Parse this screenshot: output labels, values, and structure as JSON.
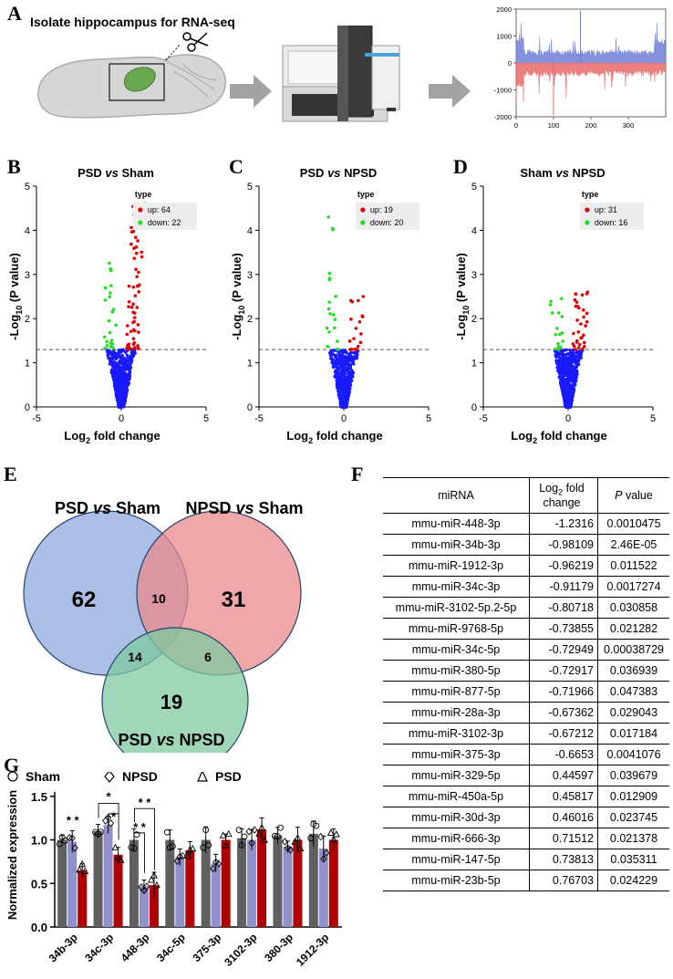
{
  "panels": {
    "a": "A",
    "b": "B",
    "c": "C",
    "d": "D",
    "e": "E",
    "f": "F",
    "g": "G"
  },
  "panel_a": {
    "title": "Isolate hippocampus for RNA-seq"
  },
  "chart_data": [
    {
      "id": "A-trace",
      "type": "area",
      "title": "",
      "x_ticks": [
        "0",
        "100",
        "200",
        "300"
      ],
      "y_ticks": [
        "2000",
        "1000",
        "0",
        "-1000",
        "-2000"
      ],
      "xlim": [
        0,
        400
      ],
      "ylim": [
        -2000,
        2000
      ],
      "series": [
        {
          "name": "up",
          "color": "#6f7fd6"
        },
        {
          "name": "down",
          "color": "#e86a6a"
        }
      ]
    },
    {
      "id": "B",
      "type": "scatter",
      "title_parts": [
        "PSD ",
        "vs",
        " Sham"
      ],
      "xlabel_base": "Log",
      "xlabel_sub": "2",
      "xlabel_rest": " fold change",
      "ylabel_base": "-Log",
      "ylabel_sub": "10",
      "ylabel_rest": " (P value)",
      "x_ticks": [
        "-5",
        "0",
        "5"
      ],
      "y_ticks": [
        "0",
        "1",
        "2",
        "3",
        "4",
        "5"
      ],
      "xlim": [
        -5,
        5
      ],
      "ylim": [
        0,
        5
      ],
      "threshold": 1.3,
      "legend": {
        "title": "type",
        "items": [
          {
            "label": "up: 64",
            "color": "#e00000"
          },
          {
            "label": "down: 22",
            "color": "#22dd22"
          }
        ]
      },
      "up": {
        "count": 64,
        "max_y": 4.6
      },
      "down": {
        "count": 22,
        "max_y": 3.3
      }
    },
    {
      "id": "C",
      "type": "scatter",
      "title_parts": [
        "PSD ",
        "vs",
        " NPSD"
      ],
      "xlabel_base": "Log",
      "xlabel_sub": "2",
      "xlabel_rest": " fold change",
      "ylabel_base": "-Log",
      "ylabel_sub": "10",
      "ylabel_rest": " (P value)",
      "x_ticks": [
        "-5",
        "0",
        "5"
      ],
      "y_ticks": [
        "0",
        "1",
        "2",
        "3",
        "4",
        "5"
      ],
      "xlim": [
        -5,
        5
      ],
      "ylim": [
        0,
        5
      ],
      "threshold": 1.3,
      "legend": {
        "title": "type",
        "items": [
          {
            "label": "up: 19",
            "color": "#e00000"
          },
          {
            "label": "down: 20",
            "color": "#22dd22"
          }
        ]
      },
      "up": {
        "count": 19,
        "max_y": 2.5
      },
      "down": {
        "count": 20,
        "max_y": 4.6
      }
    },
    {
      "id": "D",
      "type": "scatter",
      "title_parts": [
        "Sham ",
        "vs",
        " NPSD"
      ],
      "xlabel_base": "Log",
      "xlabel_sub": "2",
      "xlabel_rest": " fold change",
      "ylabel_base": "-Log",
      "ylabel_sub": "10",
      "ylabel_rest": " (P value)",
      "x_ticks": [
        "-5",
        "0",
        "5"
      ],
      "y_ticks": [
        "0",
        "1",
        "2",
        "3",
        "4",
        "5"
      ],
      "xlim": [
        -5,
        5
      ],
      "ylim": [
        0,
        5
      ],
      "threshold": 1.3,
      "legend": {
        "title": "type",
        "items": [
          {
            "label": "up: 31",
            "color": "#e00000"
          },
          {
            "label": "down: 16",
            "color": "#22dd22"
          }
        ]
      },
      "up": {
        "count": 31,
        "max_y": 2.6
      },
      "down": {
        "count": 16,
        "max_y": 2.5
      }
    },
    {
      "id": "G",
      "type": "bar",
      "ylabel": "Normalized expression",
      "categories": [
        "34b-3p",
        "34c-3p",
        "448-3p",
        "34c-5p",
        "375-3p",
        "3102-3p",
        "380-3p",
        "1912-3p"
      ],
      "y_ticks": [
        "0.0",
        "0.5",
        "1.0",
        "1.5"
      ],
      "ylim": [
        0,
        1.55
      ],
      "legend": [
        {
          "label": "Sham",
          "marker": "circle"
        },
        {
          "label": "NPSD",
          "marker": "diamond"
        },
        {
          "label": "PSD",
          "marker": "triangle"
        }
      ],
      "series": [
        {
          "name": "Sham",
          "color": "#606060",
          "values": [
            1.0,
            1.1,
            1.0,
            1.0,
            1.0,
            1.02,
            1.05,
            1.07
          ]
        },
        {
          "name": "NPSD",
          "color": "#9090cc",
          "values": [
            0.98,
            1.17,
            0.47,
            0.8,
            0.73,
            1.0,
            0.92,
            0.9
          ]
        },
        {
          "name": "PSD",
          "color": "#b00000",
          "values": [
            0.65,
            0.83,
            0.48,
            0.88,
            1.0,
            1.12,
            1.0,
            1.0
          ]
        }
      ],
      "significance": [
        "* *",
        "*",
        "*",
        "* *",
        "* *"
      ]
    }
  ],
  "venn": {
    "labels": [
      {
        "pre": "PSD ",
        "it": "vs",
        "post": " Sham"
      },
      {
        "pre": "NPSD ",
        "it": "vs",
        "post": " Sham"
      },
      {
        "pre": "PSD ",
        "it": "vs",
        "post": " NPSD"
      }
    ],
    "counts": {
      "a_only": "62",
      "b_only": "31",
      "c_only": "19",
      "ab": "10",
      "ac": "14",
      "bc": "6"
    },
    "colors": {
      "a": "#8fa8dc",
      "b": "#e98a8a",
      "c": "#7fc9a0"
    }
  },
  "table": {
    "headers": {
      "mirna": "miRNA",
      "log_base": "Log",
      "log_sub": "2",
      "log_rest": " fold change",
      "p_it": "P",
      "p_rest": " value"
    },
    "rows": [
      [
        "mmu-miR-448-3p",
        "-1.2316",
        "0.0010475"
      ],
      [
        "mmu-miR-34b-3p",
        "-0.98109",
        "2.46E-05"
      ],
      [
        "mmu-miR-1912-3p",
        "-0.96219",
        "0.011522"
      ],
      [
        "mmu-miR-34c-3p",
        "-0.91179",
        "0.0017274"
      ],
      [
        "mmu-miR-3102-5p.2-5p",
        "-0.80718",
        "0.030858"
      ],
      [
        "mmu-miR-9768-5p",
        "-0.73855",
        "0.021282"
      ],
      [
        "mmu-miR-34c-5p",
        "-0.72949",
        "0.00038729"
      ],
      [
        "mmu-miR-380-5p",
        "-0.72917",
        "0.036939"
      ],
      [
        "mmu-miR-877-5p",
        "-0.71966",
        "0.047383"
      ],
      [
        "mmu-miR-28a-3p",
        "-0.67362",
        "0.029043"
      ],
      [
        "mmu-miR-3102-3p",
        "-0.67212",
        "0.017184"
      ],
      [
        "mmu-miR-375-3p",
        "-0.6653",
        "0.0041076"
      ],
      [
        "mmu-miR-329-5p",
        "0.44597",
        "0.039679"
      ],
      [
        "mmu-miR-450a-5p",
        "0.45817",
        "0.012909"
      ],
      [
        "mmu-miR-30d-3p",
        "0.46016",
        "0.023745"
      ],
      [
        "mmu-miR-666-3p",
        "0.71512",
        "0.021378"
      ],
      [
        "mmu-miR-147-5p",
        "0.73813",
        "0.035311"
      ],
      [
        "mmu-miR-23b-5p",
        "0.76703",
        "0.024229"
      ]
    ]
  }
}
